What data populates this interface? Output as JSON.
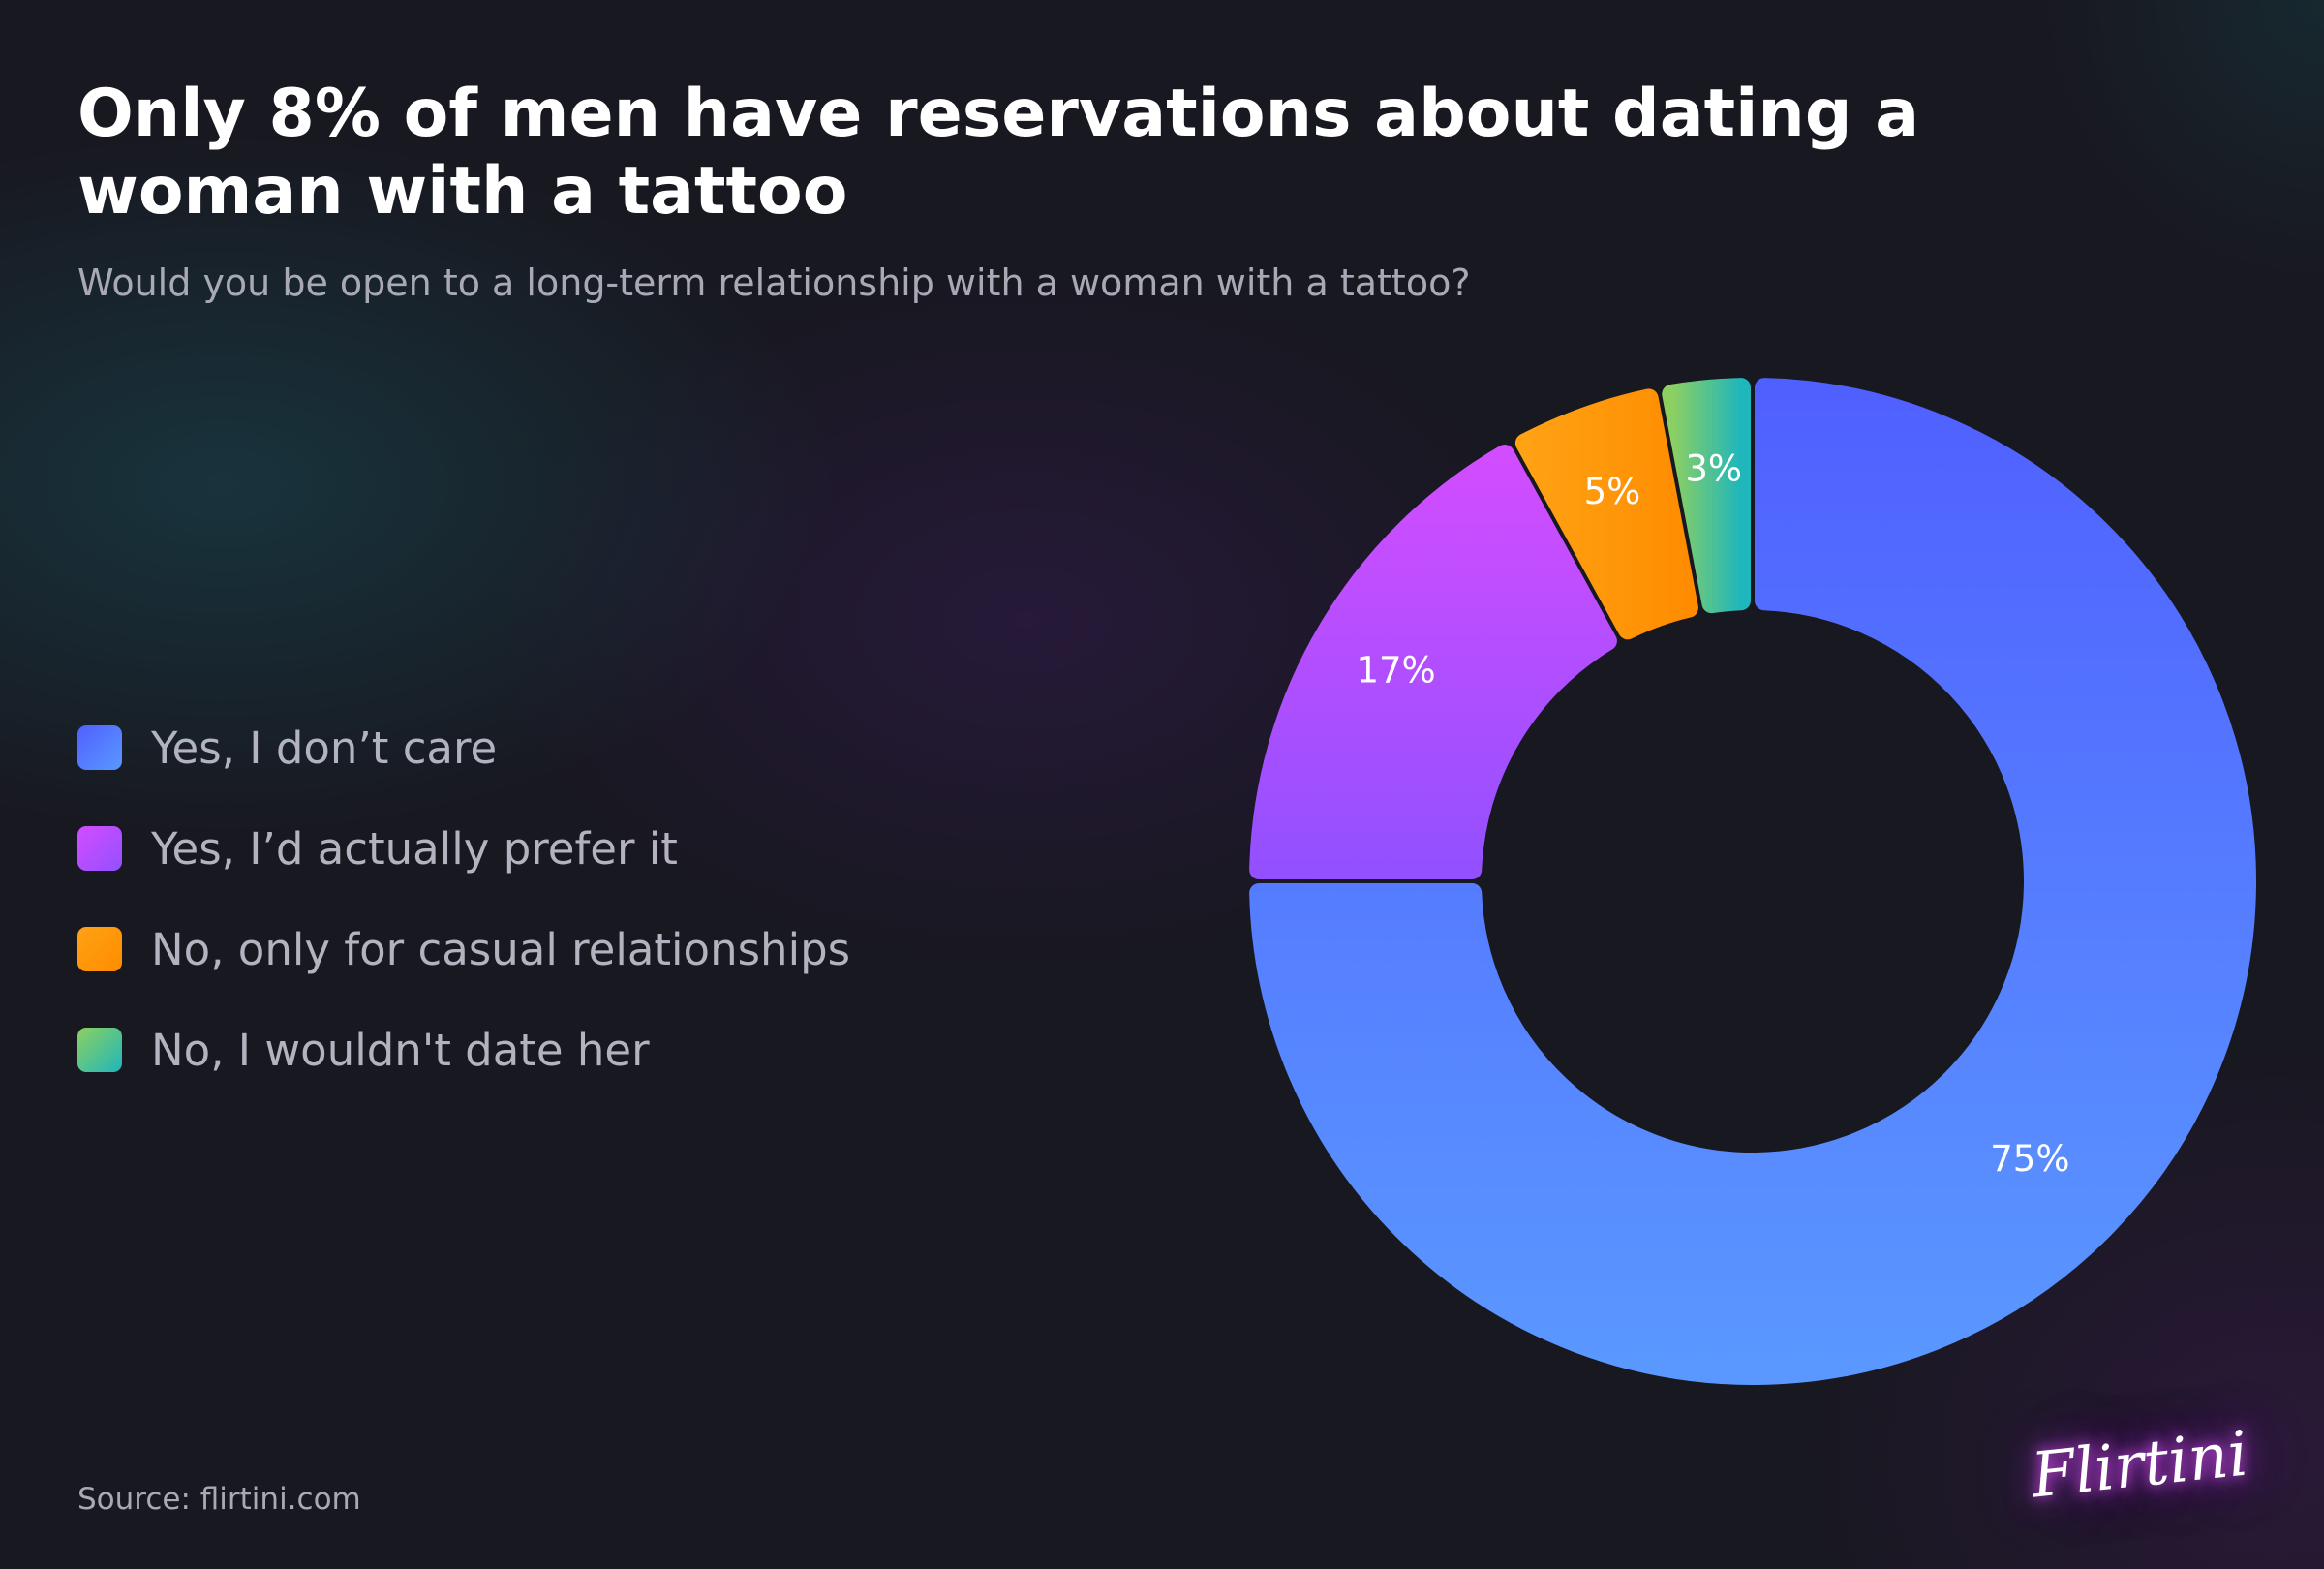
{
  "header": {
    "title": "Only 8% of men have reservations about dating a woman with a tattoo",
    "subtitle": "Would you be open to a long-term relationship with a woman with a tattoo?"
  },
  "chart_data": {
    "type": "pie",
    "variant": "donut",
    "title": "Only 8% of men have reservations about dating a woman with a tattoo",
    "subtitle": "Would you be open to a long-term relationship with a woman with a tattoo?",
    "unit": "%",
    "legend_position": "left",
    "categories": [
      "Yes, I don’t care",
      "Yes, I’d actually prefer it",
      "No, only for casual relationships",
      "No, I wouldn't date her"
    ],
    "values": [
      75,
      17,
      5,
      3
    ],
    "value_labels": [
      "75%",
      "17%",
      "5%",
      "3%"
    ],
    "colors": [
      [
        "#5060ff",
        "#5a98ff"
      ],
      [
        "#d24dff",
        "#9350ff"
      ],
      [
        "#ffa214",
        "#ff8c00"
      ],
      [
        "#8ed060",
        "#1fb6bc"
      ]
    ]
  },
  "footer": {
    "source": "Source: flirtini.com",
    "logo_text": "Flirtini"
  }
}
